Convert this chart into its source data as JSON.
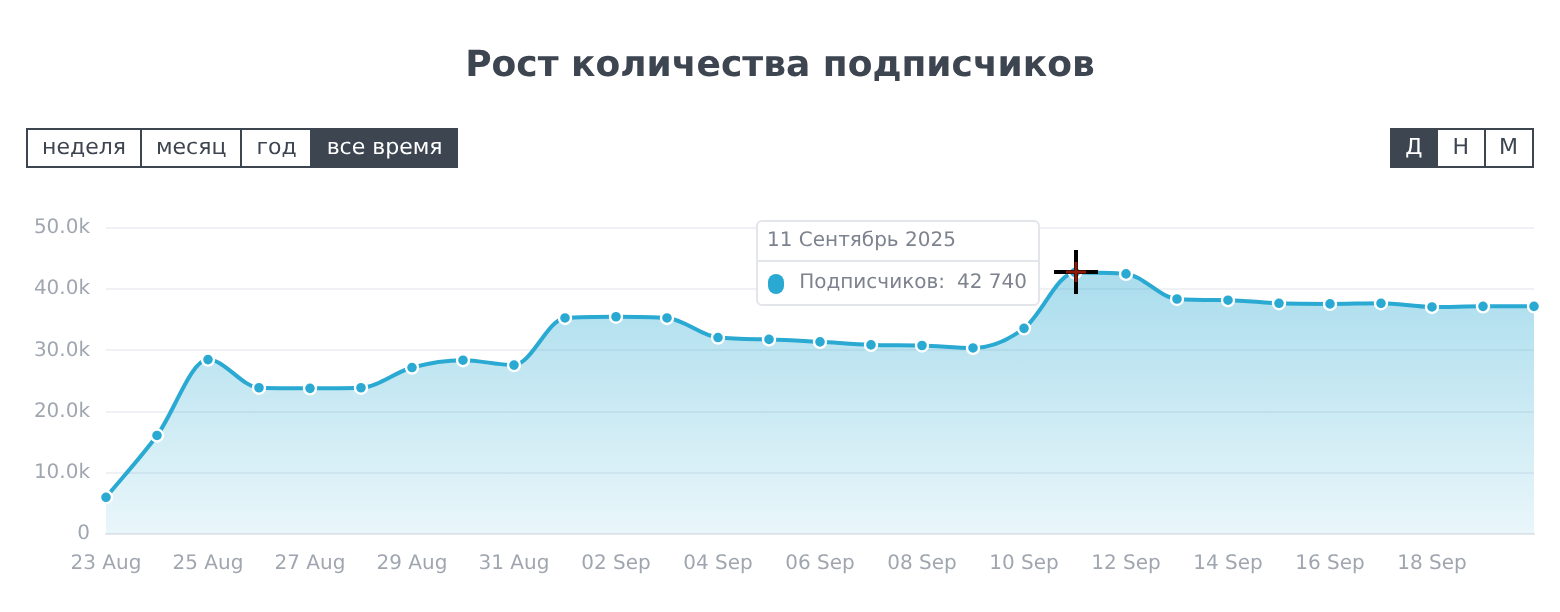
{
  "chart_data": {
    "type": "area",
    "title": "Рост количества подписчиков",
    "categories": [
      "23 Aug",
      null,
      "25 Aug",
      null,
      "27 Aug",
      null,
      "29 Aug",
      null,
      "31 Aug",
      null,
      "02 Sep",
      null,
      "04 Sep",
      null,
      "06 Sep",
      null,
      "08 Sep",
      null,
      "10 Sep",
      null,
      "12 Sep",
      null,
      "14 Sep",
      null,
      "16 Sep",
      null,
      "18 Sep",
      null,
      null
    ],
    "series": [
      {
        "name": "Подписчиков:",
        "color": "#2aa9d2",
        "values": [
          6000,
          16100,
          28500,
          23900,
          23800,
          23900,
          27200,
          28400,
          27600,
          35300,
          35500,
          35300,
          32100,
          31800,
          31400,
          30900,
          30800,
          30400,
          33600,
          42740,
          42500,
          38400,
          38200,
          37700,
          37600,
          37700,
          37100,
          37200,
          37200
        ]
      }
    ],
    "ylim": [
      0,
      50000
    ],
    "yticks": [
      {
        "value": 0,
        "label": "0"
      },
      {
        "value": 10000,
        "label": "10.0k"
      },
      {
        "value": 20000,
        "label": "20.0k"
      },
      {
        "value": 30000,
        "label": "30.0k"
      },
      {
        "value": 40000,
        "label": "40.0k"
      },
      {
        "value": 50000,
        "label": "50.0k"
      }
    ],
    "grid": "y",
    "legend": "top",
    "marker": "circle",
    "annotations": [
      "неделя",
      "месяц",
      "год",
      "все время",
      "Д",
      "Н",
      "М",
      "11 Сентябрь 2025",
      "42 740"
    ]
  }
}
